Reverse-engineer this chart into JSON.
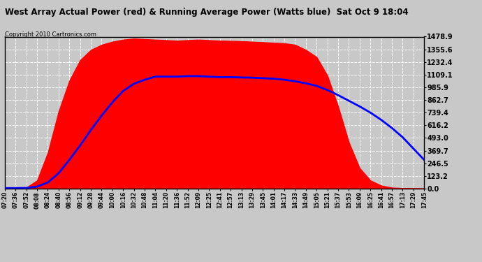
{
  "title": "West Array Actual Power (red) & Running Average Power (Watts blue)  Sat Oct 9 18:04",
  "copyright": "Copyright 2010 Cartronics.com",
  "yticks": [
    0.0,
    123.2,
    246.5,
    369.7,
    493.0,
    616.2,
    739.4,
    862.7,
    985.9,
    1109.1,
    1232.4,
    1355.6,
    1478.9
  ],
  "ylim": [
    0.0,
    1478.9
  ],
  "bg_color": "#c8c8c8",
  "plot_bg_color": "#c8c8c8",
  "grid_color": "white",
  "actual_color": "red",
  "avg_color": "blue",
  "xtick_labels": [
    "07:20",
    "07:36",
    "07:52",
    "08:08",
    "08:24",
    "08:40",
    "08:56",
    "09:12",
    "09:28",
    "09:44",
    "10:00",
    "10:16",
    "10:32",
    "10:48",
    "11:04",
    "11:20",
    "11:36",
    "11:52",
    "12:09",
    "12:25",
    "12:41",
    "12:57",
    "13:13",
    "13:29",
    "13:45",
    "14:01",
    "14:17",
    "14:33",
    "14:49",
    "15:05",
    "15:21",
    "15:37",
    "15:53",
    "16:09",
    "16:25",
    "16:41",
    "16:57",
    "17:13",
    "17:29",
    "17:45"
  ],
  "actual_power": [
    5,
    5,
    10,
    80,
    350,
    750,
    1050,
    1250,
    1350,
    1400,
    1430,
    1450,
    1460,
    1455,
    1450,
    1445,
    1440,
    1445,
    1450,
    1445,
    1440,
    1438,
    1435,
    1430,
    1425,
    1420,
    1415,
    1400,
    1350,
    1280,
    1100,
    800,
    450,
    200,
    80,
    30,
    10,
    5,
    3,
    2
  ],
  "avg_power": [
    5,
    5,
    7,
    20,
    60,
    150,
    280,
    420,
    570,
    710,
    840,
    950,
    1020,
    1060,
    1090,
    1090,
    1090,
    1095,
    1095,
    1090,
    1085,
    1085,
    1082,
    1080,
    1075,
    1070,
    1060,
    1045,
    1025,
    1000,
    960,
    910,
    855,
    800,
    740,
    670,
    590,
    500,
    390,
    280
  ]
}
